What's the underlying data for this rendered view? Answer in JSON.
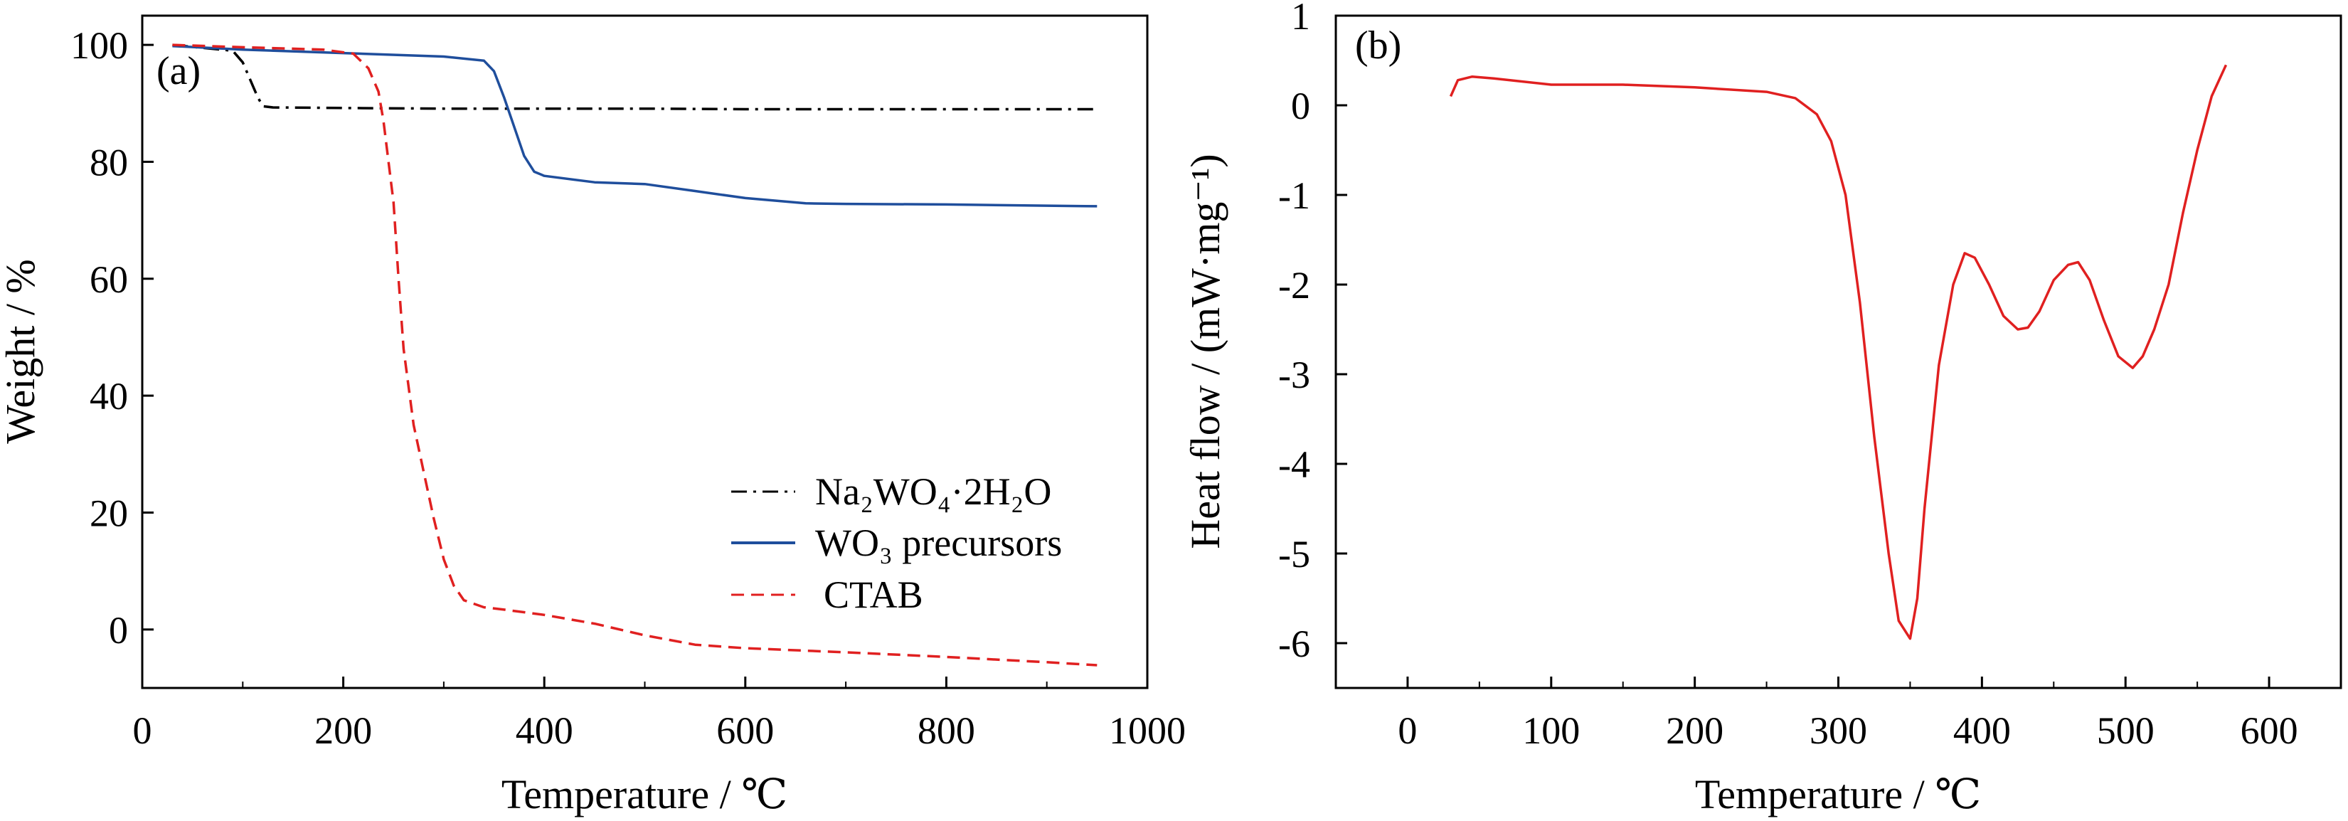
{
  "chart_data": [
    {
      "panel": "(a)",
      "type": "line",
      "xlabel": "Temperature / ℃",
      "ylabel": "Weight / %",
      "xlim": [
        0,
        1000
      ],
      "ylim": [
        -10,
        105
      ],
      "xticks": [
        0,
        200,
        400,
        600,
        800,
        1000
      ],
      "xtick_labels": [
        "0",
        "200",
        "400",
        "600",
        "800",
        "1000"
      ],
      "yticks": [
        0,
        20,
        40,
        60,
        80,
        100
      ],
      "ytick_labels": [
        "0",
        "20",
        "40",
        "60",
        "80",
        "100"
      ],
      "legend_position": "bottom-right",
      "legend_labels": [
        "Na₂WO₄·2H₂O",
        "WO₃ precursors",
        "CTAB"
      ],
      "series": [
        {
          "name": "Na₂WO₄·2H₂O",
          "color": "#000000",
          "style": "dashdot",
          "x": [
            30,
            60,
            90,
            100,
            105,
            110,
            115,
            120,
            130,
            200,
            300,
            400,
            500,
            600,
            700,
            800,
            900,
            950
          ],
          "y": [
            100,
            99.5,
            99,
            97,
            95,
            93,
            91,
            89.5,
            89.3,
            89.2,
            89.1,
            89.1,
            89.1,
            89.0,
            89.0,
            89.0,
            89.0,
            89.0
          ]
        },
        {
          "name": "WO₃ precursors",
          "color": "#1f4e9c",
          "style": "solid",
          "x": [
            30,
            100,
            200,
            300,
            340,
            350,
            360,
            370,
            380,
            390,
            400,
            450,
            500,
            550,
            600,
            660,
            700,
            800,
            900,
            950
          ],
          "y": [
            99.8,
            99.2,
            98.6,
            98.0,
            97.3,
            95.5,
            91,
            86,
            81,
            78.3,
            77.6,
            76.5,
            76.2,
            75,
            73.8,
            72.9,
            72.8,
            72.7,
            72.5,
            72.4
          ]
        },
        {
          "name": "CTAB",
          "color": "#e02020",
          "style": "dashed",
          "x": [
            30,
            100,
            180,
            210,
            225,
            235,
            240,
            245,
            250,
            255,
            260,
            270,
            280,
            290,
            300,
            310,
            320,
            340,
            360,
            400,
            450,
            500,
            550,
            600,
            700,
            800,
            900,
            950
          ],
          "y": [
            100,
            99.6,
            99.2,
            98.5,
            96,
            92,
            87,
            80,
            73,
            60,
            48,
            35,
            27,
            19,
            12,
            7.5,
            5,
            3.8,
            3.4,
            2.5,
            1,
            -1,
            -2.6,
            -3.2,
            -3.9,
            -4.7,
            -5.6,
            -6.1
          ]
        }
      ]
    },
    {
      "panel": "(b)",
      "type": "line",
      "xlabel": "Temperature / ℃",
      "ylabel": "Heat flow / (mW·mg⁻¹)",
      "xlim": [
        -50,
        650
      ],
      "ylim": [
        -6.5,
        1
      ],
      "xticks": [
        0,
        100,
        200,
        300,
        400,
        500,
        600
      ],
      "xtick_labels": [
        "0",
        "100",
        "200",
        "300",
        "400",
        "500",
        "600"
      ],
      "yticks": [
        1,
        0,
        -1,
        -2,
        -3,
        -4,
        -5,
        -6
      ],
      "ytick_labels": [
        "1",
        "0",
        "-1",
        "-2",
        "-3",
        "-4",
        "-5",
        "-6"
      ],
      "series": [
        {
          "color": "#e02020",
          "style": "solid",
          "x": [
            30,
            35,
            45,
            60,
            100,
            150,
            200,
            250,
            270,
            285,
            295,
            305,
            315,
            325,
            335,
            342,
            350,
            355,
            360,
            370,
            380,
            388,
            395,
            405,
            415,
            425,
            432,
            440,
            450,
            460,
            467,
            475,
            485,
            495,
            505,
            512,
            520,
            530,
            540,
            550,
            560,
            570
          ],
          "y": [
            0.1,
            0.28,
            0.32,
            0.3,
            0.23,
            0.23,
            0.2,
            0.15,
            0.08,
            -0.1,
            -0.4,
            -1.0,
            -2.2,
            -3.7,
            -5.0,
            -5.75,
            -5.95,
            -5.5,
            -4.5,
            -2.9,
            -2.0,
            -1.65,
            -1.7,
            -2.0,
            -2.35,
            -2.5,
            -2.48,
            -2.3,
            -1.95,
            -1.78,
            -1.75,
            -1.95,
            -2.4,
            -2.8,
            -2.93,
            -2.8,
            -2.5,
            -2.0,
            -1.2,
            -0.5,
            0.1,
            0.45
          ]
        }
      ]
    }
  ]
}
